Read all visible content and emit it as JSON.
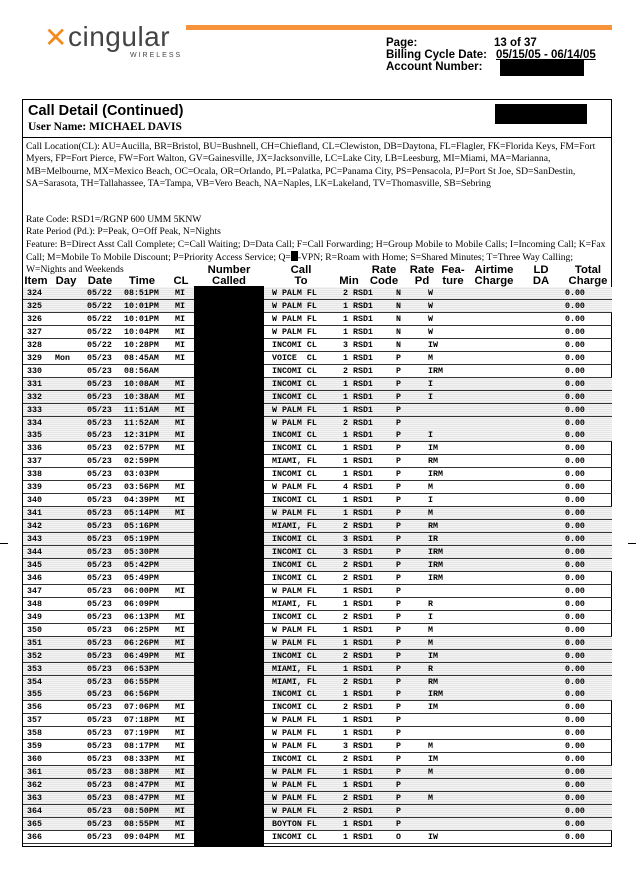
{
  "logo": {
    "brand": "cingular",
    "sub": "WIRELESS",
    "color": "#f28a1f"
  },
  "header": {
    "page_label": "Page:",
    "page_value": "13 of 37",
    "cycle_label": "Billing Cycle Date:",
    "cycle_value": "05/15/05 - 06/14/05",
    "account_label": "Account Number:"
  },
  "section": {
    "title": "Call Detail (Continued)",
    "user": "User Name: MICHAEL DAVIS"
  },
  "legend": {
    "locations": "Call Location(CL):  AU=Aucilla, BR=Bristol, BU=Bushnell, CH=Chiefland, CL=Clewiston, DB=Daytona, FL=Flagler, FK=Florida Keys, FM=Fort Myers, FP=Fort Pierce, FW=Fort Walton, GV=Gainesville, JX=Jacksonville, LC=Lake City, LB=Leesburg, MI=Miami, MA=Marianna, MB=Melbourne, MX=Mexico Beach, OC=Ocala, OR=Orlando, PL=Palatka, PC=Panama City, PS=Pensacola, PJ=Port St Joe, SD=SanDestin, SA=Sarasota, TH=Tallahassee, TA=Tampa, VB=Vero Beach, NA=Naples, LK=Lakeland, TV=Thomasville, SB=Sebring",
    "rate_code": "Rate Code: RSD1=/RGNP 600 UMM 5KNW",
    "rate_period": "Rate Period (Pd.): P=Peak, O=Off Peak, N=Nights",
    "feature_a": "Feature: B=Direct Asst Call Complete; C=Call Waiting; D=Data Call; F=Call Forwarding; H=Group Mobile to Mobile Calls; I=Incoming Call; K=Fax Call; M=Mobile To Mobile Discount; P=Priority Access Service; Q=",
    "feature_b": "-VPN; R=Roam with Home; S=Shared Minutes;  T=Three Way Calling; W=Nights and Weekends"
  },
  "columns": [
    "Item",
    "Day",
    "Date",
    "Time",
    "CL",
    "Number Called",
    "Call To",
    "Min",
    "Rate Code",
    "Rate Pd",
    "Fea- ture",
    "Airtime Charge",
    "LD DA",
    "Total Charge"
  ],
  "rows": [
    [
      "324",
      "",
      "05/22",
      "08:51PM",
      "MI",
      "W PALM FL",
      "2",
      "RSD1",
      "N",
      "W",
      "0.00"
    ],
    [
      "325",
      "",
      "05/22",
      "10:01PM",
      "MI",
      "W PALM FL",
      "1",
      "RSD1",
      "N",
      "W",
      "0.00"
    ],
    [
      "326",
      "",
      "05/22",
      "10:01PM",
      "MI",
      "W PALM FL",
      "1",
      "RSD1",
      "N",
      "W",
      "0.00"
    ],
    [
      "327",
      "",
      "05/22",
      "10:04PM",
      "MI",
      "W PALM FL",
      "1",
      "RSD1",
      "N",
      "W",
      "0.00"
    ],
    [
      "328",
      "",
      "05/22",
      "10:28PM",
      "MI",
      "INCOMI CL",
      "3",
      "RSD1",
      "N",
      "IW",
      "0.00"
    ],
    [
      "329",
      "Mon",
      "05/23",
      "08:45AM",
      "MI",
      "VOICE  CL",
      "1",
      "RSD1",
      "P",
      "M",
      "0.00"
    ],
    [
      "330",
      "",
      "05/23",
      "08:56AM",
      "",
      "INCOMI CL",
      "2",
      "RSD1",
      "P",
      "IRM",
      "0.00"
    ],
    [
      "331",
      "",
      "05/23",
      "10:08AM",
      "MI",
      "INCOMI CL",
      "1",
      "RSD1",
      "P",
      "I",
      "0.00"
    ],
    [
      "332",
      "",
      "05/23",
      "10:38AM",
      "MI",
      "INCOMI CL",
      "1",
      "RSD1",
      "P",
      "I",
      "0.00"
    ],
    [
      "333",
      "",
      "05/23",
      "11:51AM",
      "MI",
      "W PALM FL",
      "1",
      "RSD1",
      "P",
      "",
      "0.00"
    ],
    [
      "334",
      "",
      "05/23",
      "11:52AM",
      "MI",
      "W PALM FL",
      "2",
      "RSD1",
      "P",
      "",
      "0.00"
    ],
    [
      "335",
      "",
      "05/23",
      "12:31PM",
      "MI",
      "INCOMI CL",
      "1",
      "RSD1",
      "P",
      "I",
      "0.00"
    ],
    [
      "336",
      "",
      "05/23",
      "02:57PM",
      "MI",
      "INCOMI CL",
      "1",
      "RSD1",
      "P",
      "IM",
      "0.00"
    ],
    [
      "337",
      "",
      "05/23",
      "02:59PM",
      "",
      "MIAMI, FL",
      "1",
      "RSD1",
      "P",
      "RM",
      "0.00"
    ],
    [
      "338",
      "",
      "05/23",
      "03:03PM",
      "",
      "INCOMI CL",
      "1",
      "RSD1",
      "P",
      "IRM",
      "0.00"
    ],
    [
      "339",
      "",
      "05/23",
      "03:56PM",
      "MI",
      "W PALM FL",
      "4",
      "RSD1",
      "P",
      "M",
      "0.00"
    ],
    [
      "340",
      "",
      "05/23",
      "04:39PM",
      "MI",
      "INCOMI CL",
      "1",
      "RSD1",
      "P",
      "I",
      "0.00"
    ],
    [
      "341",
      "",
      "05/23",
      "05:14PM",
      "MI",
      "W PALM FL",
      "1",
      "RSD1",
      "P",
      "M",
      "0.00"
    ],
    [
      "342",
      "",
      "05/23",
      "05:16PM",
      "",
      "MIAMI, FL",
      "2",
      "RSD1",
      "P",
      "RM",
      "0.00"
    ],
    [
      "343",
      "",
      "05/23",
      "05:19PM",
      "",
      "INCOMI CL",
      "3",
      "RSD1",
      "P",
      "IR",
      "0.00"
    ],
    [
      "344",
      "",
      "05/23",
      "05:30PM",
      "",
      "INCOMI CL",
      "3",
      "RSD1",
      "P",
      "IRM",
      "0.00"
    ],
    [
      "345",
      "",
      "05/23",
      "05:42PM",
      "",
      "INCOMI CL",
      "2",
      "RSD1",
      "P",
      "IRM",
      "0.00"
    ],
    [
      "346",
      "",
      "05/23",
      "05:49PM",
      "",
      "INCOMI CL",
      "2",
      "RSD1",
      "P",
      "IRM",
      "0.00"
    ],
    [
      "347",
      "",
      "05/23",
      "06:00PM",
      "MI",
      "W PALM FL",
      "1",
      "RSD1",
      "P",
      "",
      "0.00"
    ],
    [
      "348",
      "",
      "05/23",
      "06:09PM",
      "",
      "MIAMI, FL",
      "1",
      "RSD1",
      "P",
      "R",
      "0.00"
    ],
    [
      "349",
      "",
      "05/23",
      "06:13PM",
      "MI",
      "INCOMI CL",
      "2",
      "RSD1",
      "P",
      "I",
      "0.00"
    ],
    [
      "350",
      "",
      "05/23",
      "06:25PM",
      "MI",
      "W PALM FL",
      "1",
      "RSD1",
      "P",
      "M",
      "0.00"
    ],
    [
      "351",
      "",
      "05/23",
      "06:26PM",
      "MI",
      "W PALM FL",
      "1",
      "RSD1",
      "P",
      "M",
      "0.00"
    ],
    [
      "352",
      "",
      "05/23",
      "06:49PM",
      "MI",
      "INCOMI CL",
      "2",
      "RSD1",
      "P",
      "IM",
      "0.00"
    ],
    [
      "353",
      "",
      "05/23",
      "06:53PM",
      "",
      "MIAMI, FL",
      "1",
      "RSD1",
      "P",
      "R",
      "0.00"
    ],
    [
      "354",
      "",
      "05/23",
      "06:55PM",
      "",
      "MIAMI, FL",
      "2",
      "RSD1",
      "P",
      "RM",
      "0.00"
    ],
    [
      "355",
      "",
      "05/23",
      "06:56PM",
      "",
      "INCOMI CL",
      "1",
      "RSD1",
      "P",
      "IRM",
      "0.00"
    ],
    [
      "356",
      "",
      "05/23",
      "07:06PM",
      "MI",
      "INCOMI CL",
      "2",
      "RSD1",
      "P",
      "IM",
      "0.00"
    ],
    [
      "357",
      "",
      "05/23",
      "07:18PM",
      "MI",
      "W PALM FL",
      "1",
      "RSD1",
      "P",
      "",
      "0.00"
    ],
    [
      "358",
      "",
      "05/23",
      "07:19PM",
      "MI",
      "W PALM FL",
      "1",
      "RSD1",
      "P",
      "",
      "0.00"
    ],
    [
      "359",
      "",
      "05/23",
      "08:17PM",
      "MI",
      "W PALM FL",
      "3",
      "RSD1",
      "P",
      "M",
      "0.00"
    ],
    [
      "360",
      "",
      "05/23",
      "08:33PM",
      "MI",
      "INCOMI CL",
      "2",
      "RSD1",
      "P",
      "IM",
      "0.00"
    ],
    [
      "361",
      "",
      "05/23",
      "08:38PM",
      "MI",
      "W PALM FL",
      "1",
      "RSD1",
      "P",
      "M",
      "0.00"
    ],
    [
      "362",
      "",
      "05/23",
      "08:47PM",
      "MI",
      "W PALM FL",
      "1",
      "RSD1",
      "P",
      "",
      "0.00"
    ],
    [
      "363",
      "",
      "05/23",
      "08:47PM",
      "MI",
      "W PALM FL",
      "2",
      "RSD1",
      "P",
      "M",
      "0.00"
    ],
    [
      "364",
      "",
      "05/23",
      "08:50PM",
      "MI",
      "W PALM FL",
      "2",
      "RSD1",
      "P",
      "",
      "0.00"
    ],
    [
      "365",
      "",
      "05/23",
      "08:55PM",
      "MI",
      "BOYTON FL",
      "1",
      "RSD1",
      "P",
      "",
      "0.00"
    ],
    [
      "366",
      "",
      "05/23",
      "09:04PM",
      "MI",
      "INCOMI CL",
      "1",
      "RSD1",
      "O",
      "IW",
      "0.00"
    ]
  ]
}
